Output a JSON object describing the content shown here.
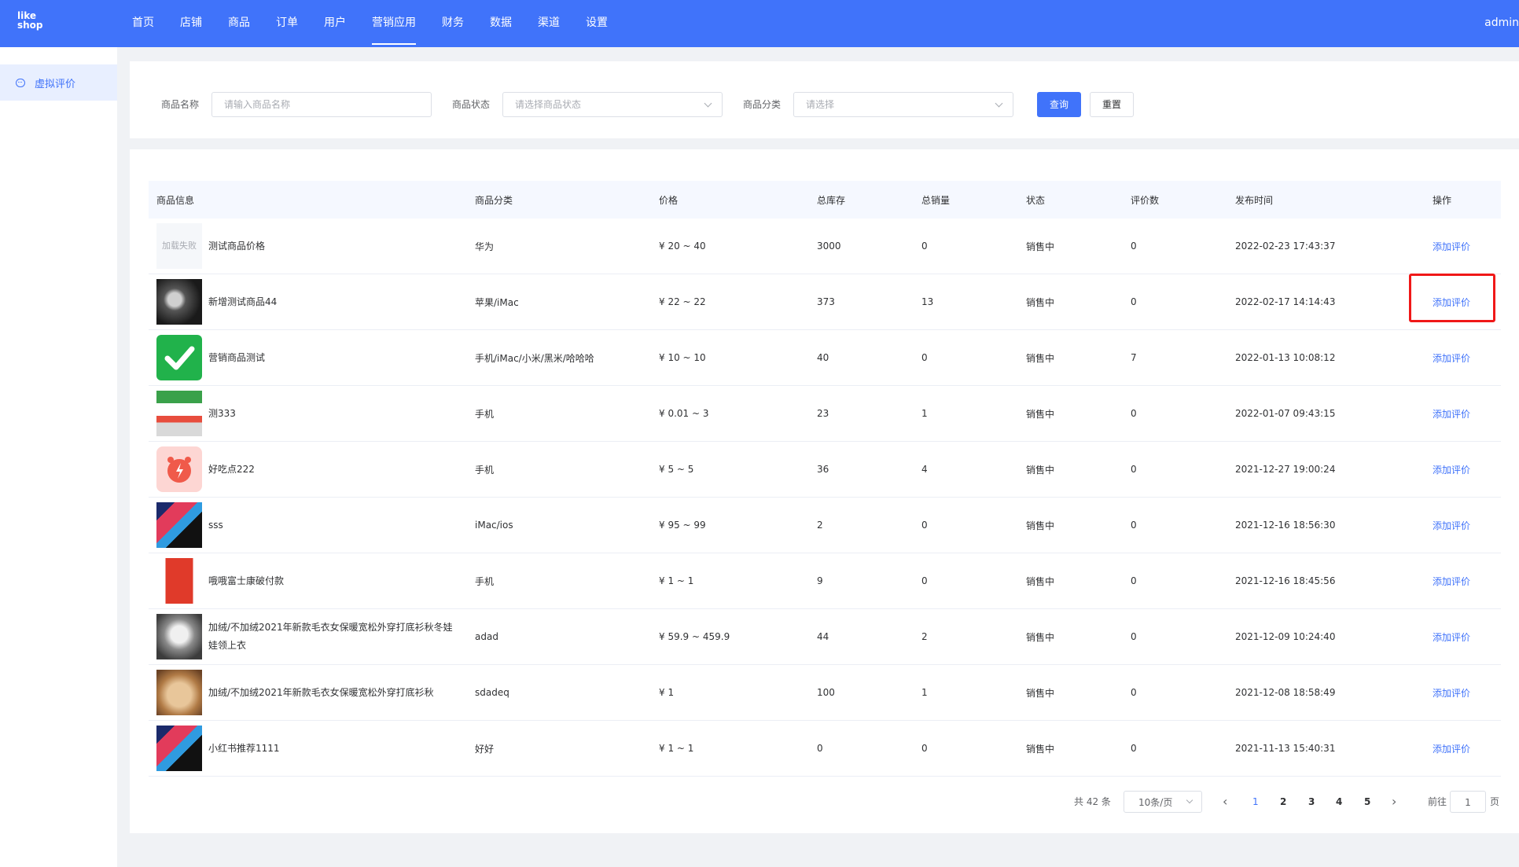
{
  "header": {
    "logo_line1": "like",
    "logo_line2": "shop",
    "nav": [
      "首页",
      "店铺",
      "商品",
      "订单",
      "用户",
      "营销应用",
      "财务",
      "数据",
      "渠道",
      "设置"
    ],
    "active_nav": "营销应用",
    "user": "admin"
  },
  "sidebar": {
    "items": [
      {
        "label": "虚拟评价",
        "icon": "chat-bubble-icon",
        "active": true
      }
    ]
  },
  "filter": {
    "name_label": "商品名称",
    "name_placeholder": "请输入商品名称",
    "status_label": "商品状态",
    "status_placeholder": "请选择商品状态",
    "category_label": "商品分类",
    "category_placeholder": "请选择",
    "query_button": "查询",
    "reset_button": "重置"
  },
  "table": {
    "headers": [
      "商品信息",
      "商品分类",
      "价格",
      "总库存",
      "总销量",
      "状态",
      "评价数",
      "发布时间",
      "操作"
    ],
    "rows": [
      {
        "thumb": "加载失败",
        "name": "测试商品价格",
        "category": "华为",
        "price": "¥ 20 ~ 40",
        "stock": "3000",
        "sales": "0",
        "status": "销售中",
        "reviews": "0",
        "time": "2022-02-23 17:43:37",
        "action": "添加评价"
      },
      {
        "thumb": "",
        "name": "新增测试商品44",
        "category": "苹果/iMac",
        "price": "¥ 22 ~ 22",
        "stock": "373",
        "sales": "13",
        "status": "销售中",
        "reviews": "0",
        "time": "2022-02-17 14:14:43",
        "action": "添加评价"
      },
      {
        "thumb": "",
        "name": "营销商品测试",
        "category": "手机/iMac/小米/黑米/哈哈哈",
        "price": "¥ 10 ~ 10",
        "stock": "40",
        "sales": "0",
        "status": "销售中",
        "reviews": "7",
        "time": "2022-01-13 10:08:12",
        "action": "添加评价"
      },
      {
        "thumb": "",
        "name": "测333",
        "category": "手机",
        "price": "¥ 0.01 ~ 3",
        "stock": "23",
        "sales": "1",
        "status": "销售中",
        "reviews": "0",
        "time": "2022-01-07 09:43:15",
        "action": "添加评价"
      },
      {
        "thumb": "",
        "name": "好吃点222",
        "category": "手机",
        "price": "¥ 5 ~ 5",
        "stock": "36",
        "sales": "4",
        "status": "销售中",
        "reviews": "0",
        "time": "2021-12-27 19:00:24",
        "action": "添加评价"
      },
      {
        "thumb": "",
        "name": "sss",
        "category": "iMac/ios",
        "price": "¥ 95 ~ 99",
        "stock": "2",
        "sales": "0",
        "status": "销售中",
        "reviews": "0",
        "time": "2021-12-16 18:56:30",
        "action": "添加评价"
      },
      {
        "thumb": "",
        "name": "哦哦富士康破付款",
        "category": "手机",
        "price": "¥ 1 ~ 1",
        "stock": "9",
        "sales": "0",
        "status": "销售中",
        "reviews": "0",
        "time": "2021-12-16 18:45:56",
        "action": "添加评价"
      },
      {
        "thumb": "",
        "name": "加绒/不加绒2021年新款毛衣女保暖宽松外穿打底衫秋冬娃娃领上衣",
        "category": "adad",
        "price": "¥ 59.9 ~ 459.9",
        "stock": "44",
        "sales": "2",
        "status": "销售中",
        "reviews": "0",
        "time": "2021-12-09 10:24:40",
        "action": "添加评价"
      },
      {
        "thumb": "",
        "name": "加绒/不加绒2021年新款毛衣女保暖宽松外穿打底衫秋",
        "category": "sdadeq",
        "price": "¥ 1",
        "stock": "100",
        "sales": "1",
        "status": "销售中",
        "reviews": "0",
        "time": "2021-12-08 18:58:49",
        "action": "添加评价"
      },
      {
        "thumb": "",
        "name": "小红书推荐1111",
        "category": "好好",
        "price": "¥ 1 ~ 1",
        "stock": "0",
        "sales": "0",
        "status": "销售中",
        "reviews": "0",
        "time": "2021-11-13 15:40:31",
        "action": "添加评价"
      }
    ],
    "highlighted_row": 1
  },
  "pagination": {
    "total": "共 42 条",
    "page_size": "10条/页",
    "pages": [
      "1",
      "2",
      "3",
      "4",
      "5"
    ],
    "current": "1",
    "prev_icon": "‹",
    "next_icon": "›",
    "jump_prefix": "前往",
    "jump_value": "1",
    "jump_suffix": "页"
  },
  "colors": {
    "primary": "#4073fa",
    "highlight": "#f01818"
  }
}
